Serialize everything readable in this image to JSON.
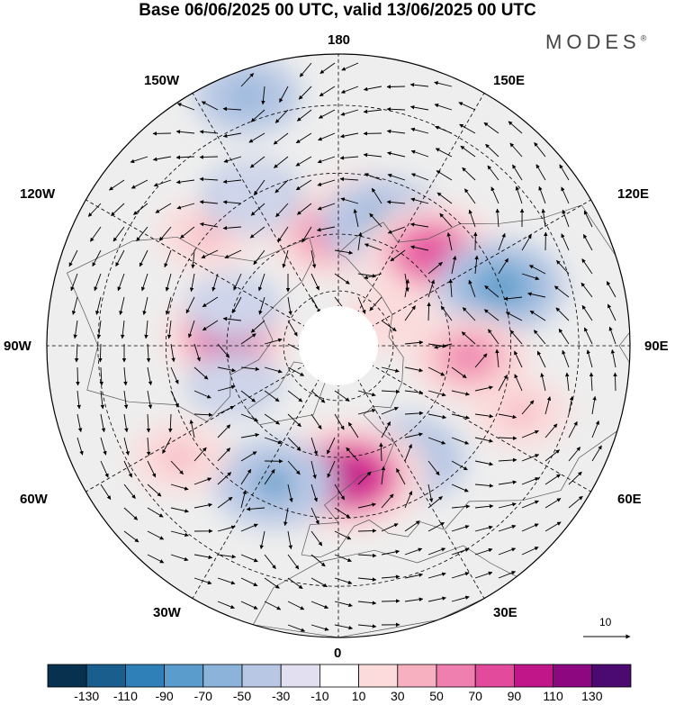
{
  "title": "Base 06/06/2025 00 UTC, valid 13/06/2025 00 UTC",
  "brand": {
    "name": "MODES",
    "mark": "®"
  },
  "map": {
    "projection": "north-polar-stereographic",
    "gridlines": true,
    "longitude_labels": {
      "top": "180",
      "top_left": "150W",
      "top_right": "150E",
      "upper_left": "120W",
      "upper_right": "120E",
      "left": "90W",
      "right": "90E",
      "lower_left": "60W",
      "lower_right": "60E",
      "bottom_left": "30W",
      "bottom_right": "30E",
      "bottom": "0"
    },
    "anomaly_blobs": [
      {
        "lon": 170,
        "lat": 55,
        "value": 70
      },
      {
        "lon": -175,
        "lat": 60,
        "value": 70
      },
      {
        "lon": 160,
        "lat": 55,
        "value": -70
      },
      {
        "lon": 135,
        "lat": 55,
        "value": 90
      },
      {
        "lon": 110,
        "lat": 45,
        "value": -80
      },
      {
        "lon": 85,
        "lat": 55,
        "value": 70
      },
      {
        "lon": 70,
        "lat": 40,
        "value": 40
      },
      {
        "lon": 30,
        "lat": 55,
        "value": -70
      },
      {
        "lon": 5,
        "lat": 55,
        "value": 110
      },
      {
        "lon": -25,
        "lat": 50,
        "value": -70
      },
      {
        "lon": -55,
        "lat": 40,
        "value": 40
      },
      {
        "lon": -95,
        "lat": 60,
        "value": 80
      },
      {
        "lon": -130,
        "lat": 45,
        "value": 40
      },
      {
        "lon": -150,
        "lat": 45,
        "value": -40
      },
      {
        "lon": -110,
        "lat": 60,
        "value": -30
      },
      {
        "lon": -70,
        "lat": 60,
        "value": -30
      },
      {
        "lon": 120,
        "lat": 75,
        "value": 30
      },
      {
        "lon": -160,
        "lat": 25,
        "value": -50
      }
    ]
  },
  "legend": {
    "vector_scale_label": "10",
    "colorbar_colors": [
      "#08304f",
      "#1a5e8e",
      "#2f80b8",
      "#5a9ccb",
      "#8cb3da",
      "#b8c7e4",
      "#e2e0f0",
      "#ffffff",
      "#fbdbdb",
      "#f6b0c0",
      "#ee7fae",
      "#e34a9c",
      "#c0168a",
      "#8d0781",
      "#4b0a6f"
    ],
    "colorbar_ticks": [
      "-130",
      "-110",
      "-90",
      "-70",
      "-50",
      "-30",
      "-10",
      "10",
      "30",
      "50",
      "70",
      "90",
      "110",
      "130"
    ]
  }
}
